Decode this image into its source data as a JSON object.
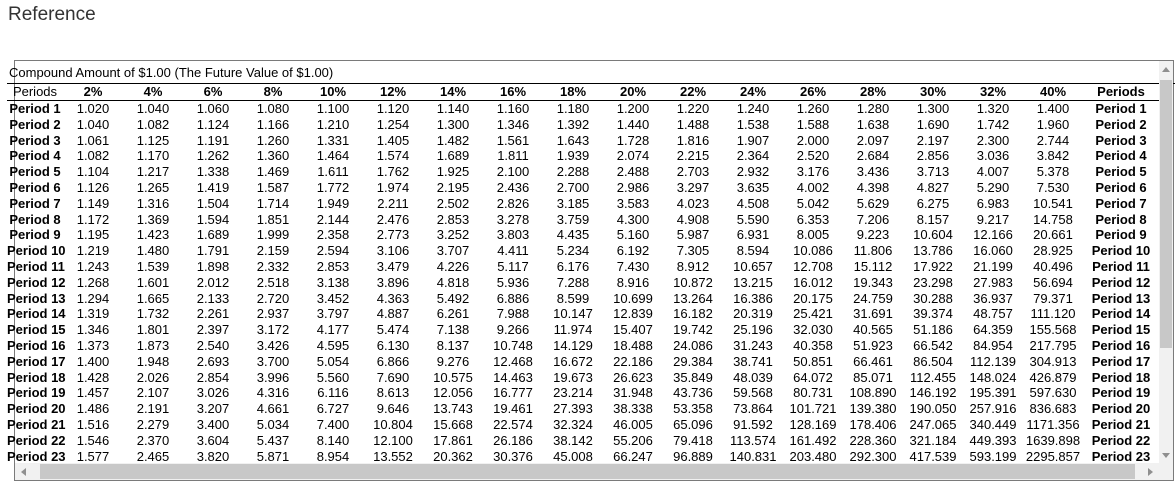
{
  "page": {
    "title": "Reference"
  },
  "panel": {
    "caption": "Compound Amount of $1.00 (The Future Value of $1.00)",
    "columns": [
      "Periods",
      "2%",
      "4%",
      "6%",
      "8%",
      "10%",
      "12%",
      "14%",
      "16%",
      "18%",
      "20%",
      "22%",
      "24%",
      "26%",
      "28%",
      "30%",
      "32%",
      "40%",
      "Periods"
    ],
    "rows": [
      {
        "label": "Period 1",
        "values": [
          "1.020",
          "1.040",
          "1.060",
          "1.080",
          "1.100",
          "1.120",
          "1.140",
          "1.160",
          "1.180",
          "1.200",
          "1.220",
          "1.240",
          "1.260",
          "1.280",
          "1.300",
          "1.320",
          "1.400"
        ]
      },
      {
        "label": "Period 2",
        "values": [
          "1.040",
          "1.082",
          "1.124",
          "1.166",
          "1.210",
          "1.254",
          "1.300",
          "1.346",
          "1.392",
          "1.440",
          "1.488",
          "1.538",
          "1.588",
          "1.638",
          "1.690",
          "1.742",
          "1.960"
        ]
      },
      {
        "label": "Period 3",
        "values": [
          "1.061",
          "1.125",
          "1.191",
          "1.260",
          "1.331",
          "1.405",
          "1.482",
          "1.561",
          "1.643",
          "1.728",
          "1.816",
          "1.907",
          "2.000",
          "2.097",
          "2.197",
          "2.300",
          "2.744"
        ]
      },
      {
        "label": "Period 4",
        "values": [
          "1.082",
          "1.170",
          "1.262",
          "1.360",
          "1.464",
          "1.574",
          "1.689",
          "1.811",
          "1.939",
          "2.074",
          "2.215",
          "2.364",
          "2.520",
          "2.684",
          "2.856",
          "3.036",
          "3.842"
        ]
      },
      {
        "label": "Period 5",
        "values": [
          "1.104",
          "1.217",
          "1.338",
          "1.469",
          "1.611",
          "1.762",
          "1.925",
          "2.100",
          "2.288",
          "2.488",
          "2.703",
          "2.932",
          "3.176",
          "3.436",
          "3.713",
          "4.007",
          "5.378"
        ]
      },
      {
        "label": "Period 6",
        "values": [
          "1.126",
          "1.265",
          "1.419",
          "1.587",
          "1.772",
          "1.974",
          "2.195",
          "2.436",
          "2.700",
          "2.986",
          "3.297",
          "3.635",
          "4.002",
          "4.398",
          "4.827",
          "5.290",
          "7.530"
        ]
      },
      {
        "label": "Period 7",
        "values": [
          "1.149",
          "1.316",
          "1.504",
          "1.714",
          "1.949",
          "2.211",
          "2.502",
          "2.826",
          "3.185",
          "3.583",
          "4.023",
          "4.508",
          "5.042",
          "5.629",
          "6.275",
          "6.983",
          "10.541"
        ]
      },
      {
        "label": "Period 8",
        "values": [
          "1.172",
          "1.369",
          "1.594",
          "1.851",
          "2.144",
          "2.476",
          "2.853",
          "3.278",
          "3.759",
          "4.300",
          "4.908",
          "5.590",
          "6.353",
          "7.206",
          "8.157",
          "9.217",
          "14.758"
        ]
      },
      {
        "label": "Period 9",
        "values": [
          "1.195",
          "1.423",
          "1.689",
          "1.999",
          "2.358",
          "2.773",
          "3.252",
          "3.803",
          "4.435",
          "5.160",
          "5.987",
          "6.931",
          "8.005",
          "9.223",
          "10.604",
          "12.166",
          "20.661"
        ]
      },
      {
        "label": "Period 10",
        "values": [
          "1.219",
          "1.480",
          "1.791",
          "2.159",
          "2.594",
          "3.106",
          "3.707",
          "4.411",
          "5.234",
          "6.192",
          "7.305",
          "8.594",
          "10.086",
          "11.806",
          "13.786",
          "16.060",
          "28.925"
        ]
      },
      {
        "label": "Period 11",
        "values": [
          "1.243",
          "1.539",
          "1.898",
          "2.332",
          "2.853",
          "3.479",
          "4.226",
          "5.117",
          "6.176",
          "7.430",
          "8.912",
          "10.657",
          "12.708",
          "15.112",
          "17.922",
          "21.199",
          "40.496"
        ]
      },
      {
        "label": "Period 12",
        "values": [
          "1.268",
          "1.601",
          "2.012",
          "2.518",
          "3.138",
          "3.896",
          "4.818",
          "5.936",
          "7.288",
          "8.916",
          "10.872",
          "13.215",
          "16.012",
          "19.343",
          "23.298",
          "27.983",
          "56.694"
        ]
      },
      {
        "label": "Period 13",
        "values": [
          "1.294",
          "1.665",
          "2.133",
          "2.720",
          "3.452",
          "4.363",
          "5.492",
          "6.886",
          "8.599",
          "10.699",
          "13.264",
          "16.386",
          "20.175",
          "24.759",
          "30.288",
          "36.937",
          "79.371"
        ]
      },
      {
        "label": "Period 14",
        "values": [
          "1.319",
          "1.732",
          "2.261",
          "2.937",
          "3.797",
          "4.887",
          "6.261",
          "7.988",
          "10.147",
          "12.839",
          "16.182",
          "20.319",
          "25.421",
          "31.691",
          "39.374",
          "48.757",
          "111.120"
        ]
      },
      {
        "label": "Period 15",
        "values": [
          "1.346",
          "1.801",
          "2.397",
          "3.172",
          "4.177",
          "5.474",
          "7.138",
          "9.266",
          "11.974",
          "15.407",
          "19.742",
          "25.196",
          "32.030",
          "40.565",
          "51.186",
          "64.359",
          "155.568"
        ]
      },
      {
        "label": "Period 16",
        "values": [
          "1.373",
          "1.873",
          "2.540",
          "3.426",
          "4.595",
          "6.130",
          "8.137",
          "10.748",
          "14.129",
          "18.488",
          "24.086",
          "31.243",
          "40.358",
          "51.923",
          "66.542",
          "84.954",
          "217.795"
        ]
      },
      {
        "label": "Period 17",
        "values": [
          "1.400",
          "1.948",
          "2.693",
          "3.700",
          "5.054",
          "6.866",
          "9.276",
          "12.468",
          "16.672",
          "22.186",
          "29.384",
          "38.741",
          "50.851",
          "66.461",
          "86.504",
          "112.139",
          "304.913"
        ]
      },
      {
        "label": "Period 18",
        "values": [
          "1.428",
          "2.026",
          "2.854",
          "3.996",
          "5.560",
          "7.690",
          "10.575",
          "14.463",
          "19.673",
          "26.623",
          "35.849",
          "48.039",
          "64.072",
          "85.071",
          "112.455",
          "148.024",
          "426.879"
        ]
      },
      {
        "label": "Period 19",
        "values": [
          "1.457",
          "2.107",
          "3.026",
          "4.316",
          "6.116",
          "8.613",
          "12.056",
          "16.777",
          "23.214",
          "31.948",
          "43.736",
          "59.568",
          "80.731",
          "108.890",
          "146.192",
          "195.391",
          "597.630"
        ]
      },
      {
        "label": "Period 20",
        "values": [
          "1.486",
          "2.191",
          "3.207",
          "4.661",
          "6.727",
          "9.646",
          "13.743",
          "19.461",
          "27.393",
          "38.338",
          "53.358",
          "73.864",
          "101.721",
          "139.380",
          "190.050",
          "257.916",
          "836.683"
        ]
      },
      {
        "label": "Period 21",
        "values": [
          "1.516",
          "2.279",
          "3.400",
          "5.034",
          "7.400",
          "10.804",
          "15.668",
          "22.574",
          "32.324",
          "46.005",
          "65.096",
          "91.592",
          "128.169",
          "178.406",
          "247.065",
          "340.449",
          "1171.356"
        ]
      },
      {
        "label": "Period 22",
        "values": [
          "1.546",
          "2.370",
          "3.604",
          "5.437",
          "8.140",
          "12.100",
          "17.861",
          "26.186",
          "38.142",
          "55.206",
          "79.418",
          "113.574",
          "161.492",
          "228.360",
          "321.184",
          "449.393",
          "1639.898"
        ]
      },
      {
        "label": "Period 23",
        "values": [
          "1.577",
          "2.465",
          "3.820",
          "5.871",
          "8.954",
          "13.552",
          "20.362",
          "30.376",
          "45.008",
          "66.247",
          "96.889",
          "140.831",
          "203.480",
          "292.300",
          "417.539",
          "593.199",
          "2295.857"
        ]
      }
    ]
  },
  "icons": {
    "scroll-up-icon": "triangle-up",
    "scroll-down-icon": "triangle-down",
    "scroll-left-icon": "triangle-left",
    "scroll-right-icon": "triangle-right"
  },
  "colors": {
    "text": "#000000",
    "title_text": "#333333",
    "panel_border": "#7a7a7a",
    "header_rule": "#000000",
    "scrollbar_track": "#f1f1f1",
    "scrollbar_thumb": "#c8c8c8",
    "scrollbar_arrow": "#8f8f8f"
  }
}
